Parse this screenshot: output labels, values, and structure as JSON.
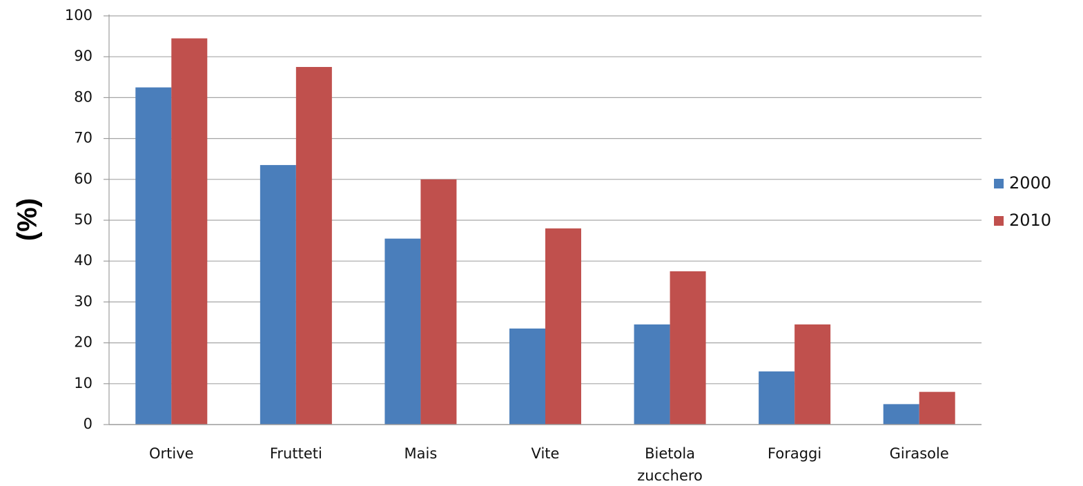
{
  "chart_data": {
    "type": "bar",
    "title": "",
    "xlabel": "",
    "ylabel": "(%)",
    "ylim": [
      0,
      100
    ],
    "yticks": [
      0,
      10,
      20,
      30,
      40,
      50,
      60,
      70,
      80,
      90,
      100
    ],
    "grid": true,
    "legend_position": "right",
    "categories": [
      [
        "Ortive"
      ],
      [
        "Frutteti"
      ],
      [
        "Mais"
      ],
      [
        "Vite"
      ],
      [
        "Bietola",
        "zucchero"
      ],
      [
        "Foraggi"
      ],
      [
        "Girasole"
      ]
    ],
    "series": [
      {
        "name": "2000",
        "color": "#4a7ebb",
        "values": [
          82.5,
          63.5,
          45.5,
          23.5,
          24.5,
          13,
          5
        ]
      },
      {
        "name": "2010",
        "color": "#c0504d",
        "values": [
          94.5,
          87.5,
          60,
          48,
          37.5,
          24.5,
          8
        ]
      }
    ]
  }
}
